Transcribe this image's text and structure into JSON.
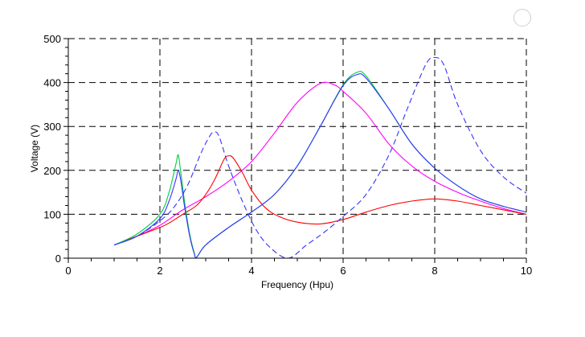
{
  "chart_data": {
    "type": "line",
    "title": "",
    "xlabel": "Frequency (Hpu)",
    "ylabel": "Voltage (V)",
    "xlim": [
      0,
      10
    ],
    "ylim": [
      0,
      500
    ],
    "x_ticks": [
      "0",
      "2",
      "4",
      "6",
      "8",
      "10"
    ],
    "y_ticks": [
      "0",
      "100",
      "200",
      "300",
      "400",
      "500"
    ],
    "grid": "dashed black at major ticks",
    "legend": "none",
    "series": [
      {
        "color": "#ff00ff",
        "style": "solid",
        "x": [
          1.0,
          1.5,
          2.0,
          2.5,
          3.0,
          3.5,
          4.0,
          4.5,
          5.0,
          5.5,
          5.8,
          6.0,
          6.5,
          7.0,
          7.5,
          8.0,
          8.5,
          9.0,
          9.5,
          10.0
        ],
        "y": [
          30,
          50,
          75,
          110,
          140,
          175,
          220,
          285,
          355,
          398,
          395,
          380,
          330,
          260,
          210,
          175,
          150,
          130,
          113,
          100
        ]
      },
      {
        "color": "#ff0000",
        "style": "solid",
        "x": [
          1.0,
          1.5,
          2.0,
          2.2,
          2.5,
          2.8,
          3.0,
          3.2,
          3.4,
          3.5,
          3.6,
          3.8,
          4.0,
          4.3,
          4.6,
          5.0,
          5.5,
          6.0,
          6.5,
          7.0,
          7.5,
          8.0,
          8.5,
          9.0,
          9.5,
          10.0
        ],
        "y": [
          30,
          50,
          70,
          80,
          100,
          120,
          145,
          180,
          225,
          233,
          228,
          195,
          155,
          115,
          95,
          82,
          78,
          88,
          105,
          120,
          130,
          135,
          130,
          120,
          110,
          100
        ]
      },
      {
        "color": "#00cc44",
        "style": "solid",
        "x": [
          1.0,
          1.5,
          2.0,
          2.2,
          2.35,
          2.4,
          2.45,
          2.55,
          2.65,
          2.75,
          2.8,
          3.0,
          3.5,
          4.0,
          4.5,
          5.0,
          5.5,
          6.0,
          6.3,
          6.5,
          7.0,
          7.5,
          8.0,
          8.5,
          9.0,
          9.5,
          10.0
        ],
        "y": [
          30,
          55,
          100,
          150,
          215,
          235,
          200,
          120,
          55,
          12,
          2,
          30,
          70,
          105,
          145,
          210,
          300,
          395,
          423,
          415,
          340,
          260,
          205,
          165,
          135,
          118,
          105
        ]
      },
      {
        "color": "#3333ff",
        "style": "solid",
        "x": [
          1.0,
          1.5,
          2.0,
          2.2,
          2.35,
          2.4,
          2.45,
          2.55,
          2.65,
          2.75,
          2.8,
          3.0,
          3.5,
          4.0,
          4.5,
          5.0,
          5.5,
          6.0,
          6.3,
          6.5,
          7.0,
          7.5,
          8.0,
          8.5,
          9.0,
          9.5,
          10.0
        ],
        "y": [
          30,
          50,
          90,
          130,
          180,
          200,
          180,
          110,
          50,
          10,
          2,
          30,
          70,
          105,
          145,
          210,
          300,
          393,
          418,
          410,
          340,
          260,
          205,
          165,
          135,
          118,
          105
        ]
      },
      {
        "color": "#3333ff",
        "style": "dashed",
        "x": [
          1.0,
          1.5,
          2.0,
          2.3,
          2.6,
          2.9,
          3.1,
          3.2,
          3.3,
          3.5,
          3.8,
          4.1,
          4.4,
          4.8,
          5.2,
          5.6,
          6.0,
          6.5,
          7.0,
          7.4,
          7.8,
          8.0,
          8.2,
          8.5,
          9.0,
          9.5,
          10.0
        ],
        "y": [
          30,
          50,
          85,
          115,
          165,
          240,
          280,
          288,
          275,
          210,
          130,
          65,
          25,
          0,
          30,
          60,
          95,
          145,
          235,
          340,
          440,
          457,
          440,
          350,
          245,
          185,
          148
        ]
      }
    ]
  }
}
